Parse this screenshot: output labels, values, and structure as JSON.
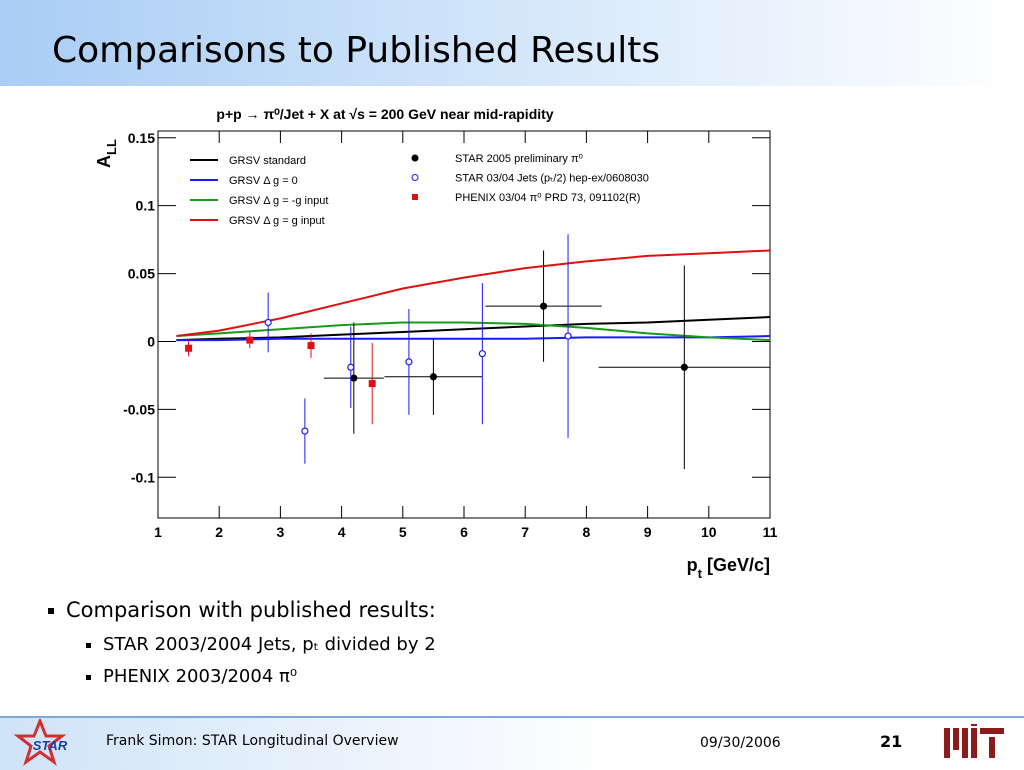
{
  "slide_title": "Comparisons to Published Results",
  "bullets": {
    "main": "Comparison with published results:",
    "sub": [
      "STAR 2003/2004 Jets, pₜ divided by 2",
      "PHENIX 2003/2004 π⁰"
    ]
  },
  "footer": {
    "logo": "STAR",
    "author": "Frank Simon: STAR Longitudinal Overview",
    "date": "09/30/2006",
    "page": "21"
  },
  "chart_data": {
    "type": "line",
    "title": "p+p → π⁰/Jet + X at √s = 200 GeV near mid-rapidity",
    "y_label": "A",
    "y_label_sub": "LL",
    "x_label": "p",
    "x_label_sub": "t",
    "x_label_rest": " [GeV/c]",
    "xlim": [
      1,
      11
    ],
    "xticks": [
      1,
      2,
      3,
      4,
      5,
      6,
      7,
      8,
      9,
      10,
      11
    ],
    "ylim": [
      -0.13,
      0.155
    ],
    "yticks": [
      0.15,
      0.1,
      0.05,
      0,
      -0.05,
      -0.1
    ],
    "curve_x": [
      1.3,
      2,
      3,
      4,
      5,
      6,
      7,
      8,
      9,
      10,
      11
    ],
    "series": [
      {
        "name": "GRSV standard",
        "kind": "curve",
        "color": "#000000",
        "values": [
          0.001,
          0.002,
          0.003,
          0.005,
          0.007,
          0.009,
          0.011,
          0.013,
          0.014,
          0.016,
          0.018
        ]
      },
      {
        "name": "GRSV Δ g = 0",
        "kind": "curve",
        "color": "#1a1aff",
        "values": [
          0.001,
          0.001,
          0.002,
          0.002,
          0.002,
          0.002,
          0.002,
          0.003,
          0.003,
          0.003,
          0.004
        ]
      },
      {
        "name": "GRSV Δ g = -g input",
        "kind": "curve",
        "color": "#1a9a1a",
        "values": [
          0.004,
          0.006,
          0.009,
          0.012,
          0.014,
          0.014,
          0.013,
          0.01,
          0.006,
          0.003,
          0.001
        ]
      },
      {
        "name": "GRSV Δ g = g input",
        "kind": "curve",
        "color": "#e01010",
        "values": [
          0.004,
          0.008,
          0.017,
          0.028,
          0.039,
          0.047,
          0.054,
          0.059,
          0.063,
          0.065,
          0.067
        ]
      },
      {
        "name": "STAR 2005 preliminary π⁰",
        "kind": "points",
        "marker": "circle-filled",
        "color": "#000000",
        "x": [
          4.2,
          5.5,
          7.3,
          9.6
        ],
        "values": [
          -0.027,
          -0.026,
          0.026,
          -0.019
        ],
        "yerr": [
          0.041,
          0.028,
          0.041,
          0.075
        ],
        "xerr": [
          0.49,
          0.8,
          0.95,
          1.4
        ]
      },
      {
        "name": "STAR 03/04 Jets (pₜ/2) hep-ex/0608030",
        "kind": "points",
        "marker": "circle-open",
        "color": "#1a1aff",
        "x": [
          2.8,
          3.4,
          4.15,
          5.1,
          6.3,
          7.7
        ],
        "values": [
          0.014,
          -0.066,
          -0.019,
          -0.015,
          -0.009,
          0.004
        ],
        "yerr": [
          0.022,
          0.024,
          0.03,
          0.039,
          0.052,
          0.075
        ]
      },
      {
        "name": "PHENIX 03/04 π⁰  PRD 73, 091102(R)",
        "kind": "points",
        "marker": "square",
        "color": "#e01010",
        "x": [
          1.5,
          2.5,
          3.5,
          4.5
        ],
        "values": [
          -0.005,
          0.001,
          -0.003,
          -0.031
        ],
        "yerr": [
          0.006,
          0.006,
          0.009,
          0.03
        ]
      }
    ]
  }
}
